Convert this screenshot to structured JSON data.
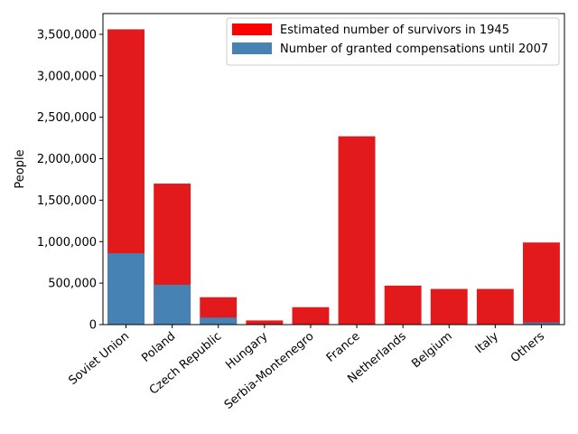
{
  "chart_data": {
    "type": "bar",
    "title": "",
    "xlabel": "",
    "ylabel": "People",
    "ylim": [
      0,
      3750000
    ],
    "yticks": [
      0,
      500000,
      1000000,
      1500000,
      2000000,
      2500000,
      3000000,
      3500000
    ],
    "ytick_labels": [
      "0",
      "500,000",
      "1,000,000",
      "1,500,000",
      "2,000,000",
      "2,500,000",
      "3,000,000",
      "3,500,000"
    ],
    "categories": [
      "Soviet Union",
      "Poland",
      "Czech Republic",
      "Hungary",
      "Serbia-Montenegro",
      "France",
      "Netherlands",
      "Belgium",
      "Italy",
      "Others"
    ],
    "series": [
      {
        "name": "Estimated number of survivors in 1945",
        "color": "#e31a1c",
        "values": [
          3560000,
          1700000,
          330000,
          50000,
          210000,
          2270000,
          470000,
          430000,
          430000,
          990000
        ]
      },
      {
        "name": "Number of granted compensations until 2007",
        "color": "#4682b4",
        "values": [
          860000,
          480000,
          85000,
          4000,
          3000,
          1000,
          1000,
          1000,
          1000,
          25000
        ]
      }
    ],
    "legend": {
      "placement": "top-right",
      "swatch_colors": [
        "#ff0000",
        "#4682b4"
      ]
    },
    "grid": false
  }
}
